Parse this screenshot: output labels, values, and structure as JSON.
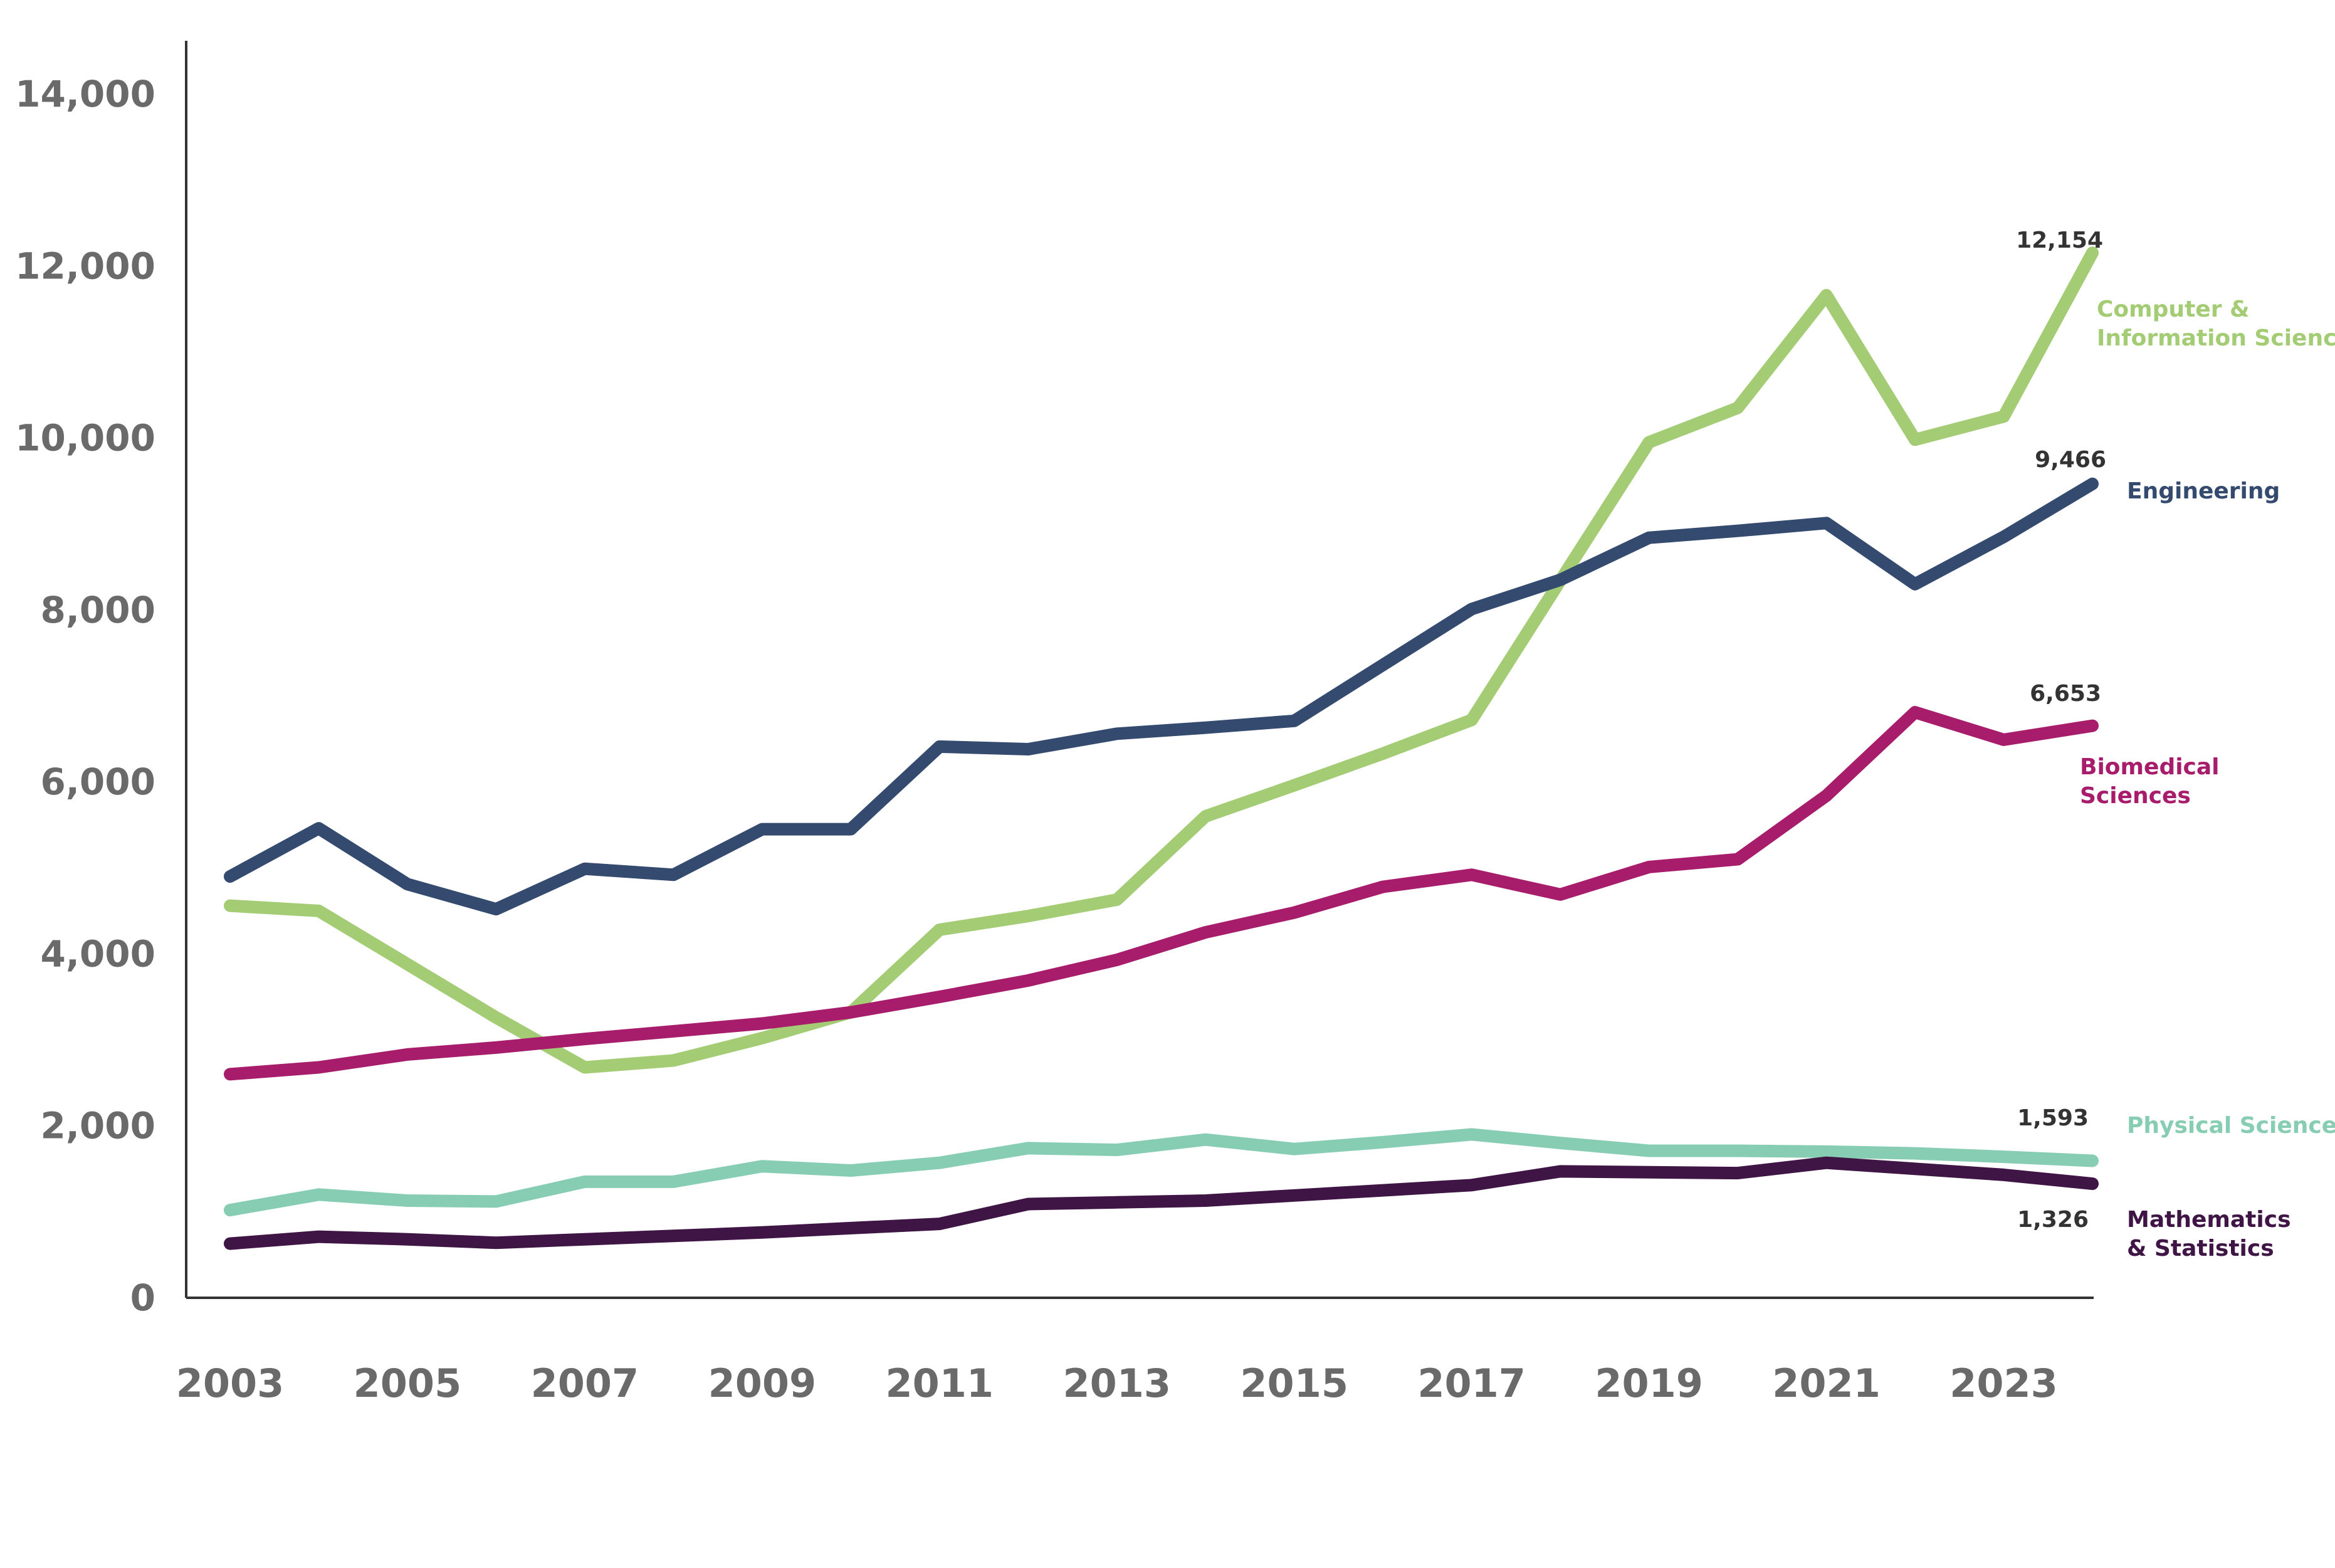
{
  "chart_data": {
    "type": "line",
    "title": "",
    "xlabel": "",
    "ylabel": "",
    "ylim": [
      0,
      14000
    ],
    "yticks": [
      0,
      2000,
      4000,
      6000,
      8000,
      10000,
      12000,
      14000
    ],
    "ytick_labels": [
      "0",
      "2,000",
      "4,000",
      "6,000",
      "8,000",
      "10,000",
      "12,000",
      "14,000"
    ],
    "xlim": [
      2003,
      2024
    ],
    "xticks": [
      2003,
      2005,
      2007,
      2009,
      2011,
      2013,
      2015,
      2017,
      2019,
      2021,
      2023
    ],
    "xtick_labels": [
      "2003",
      "2005",
      "2007",
      "2009",
      "2011",
      "2013",
      "2015",
      "2017",
      "2019",
      "2021",
      "2023"
    ],
    "x": [
      2003,
      2004,
      2005,
      2006,
      2007,
      2008,
      2009,
      2010,
      2011,
      2012,
      2013,
      2014,
      2015,
      2016,
      2017,
      2018,
      2019,
      2020,
      2021,
      2022,
      2023,
      2024
    ],
    "grid": false,
    "legend": "direct labels at line ends (right)",
    "series": [
      {
        "key": "cis",
        "name": "Computer & Information Sciences",
        "label_lines": [
          "Computer &",
          "Information Sciences"
        ],
        "color": "#a3cc74",
        "end_value_label": "12,154",
        "values": [
          4560,
          4500,
          3880,
          3260,
          2680,
          2760,
          3020,
          3320,
          4280,
          4440,
          4630,
          5600,
          5960,
          6330,
          6720,
          8340,
          9950,
          10350,
          11660,
          9980,
          10250,
          12154
        ]
      },
      {
        "key": "eng",
        "name": "Engineering",
        "label_lines": [
          "Engineering"
        ],
        "color": "#344a6e",
        "end_value_label": "9,466",
        "values": [
          4900,
          5460,
          4810,
          4520,
          4990,
          4920,
          5450,
          5450,
          6410,
          6380,
          6560,
          6630,
          6710,
          7360,
          8010,
          8350,
          8840,
          8920,
          9010,
          8300,
          8850,
          9466
        ]
      },
      {
        "key": "bio",
        "name": "Biomedical Sciences",
        "label_lines": [
          "Biomedical",
          "Sciences"
        ],
        "color": "#a71d6b",
        "end_value_label": "6,653",
        "values": [
          2600,
          2680,
          2830,
          2910,
          3010,
          3100,
          3190,
          3320,
          3500,
          3690,
          3930,
          4250,
          4480,
          4780,
          4920,
          4690,
          5010,
          5100,
          5840,
          6810,
          6490,
          6653
        ]
      },
      {
        "key": "phys",
        "name": "Physical Sciences",
        "label_lines": [
          "Physical Sciences"
        ],
        "color": "#86cdb4",
        "end_value_label": "1,593",
        "values": [
          1020,
          1200,
          1130,
          1120,
          1350,
          1350,
          1530,
          1480,
          1570,
          1740,
          1720,
          1840,
          1730,
          1810,
          1900,
          1800,
          1710,
          1710,
          1700,
          1680,
          1640,
          1593
        ]
      },
      {
        "key": "math",
        "name": "Mathematics & Statistics",
        "label_lines": [
          "Mathematics",
          "& Statistics"
        ],
        "color": "#3e1544",
        "end_value_label": "1,326",
        "values": [
          630,
          710,
          680,
          640,
          680,
          720,
          760,
          810,
          860,
          1090,
          1110,
          1130,
          1190,
          1250,
          1310,
          1470,
          1460,
          1450,
          1570,
          1500,
          1430,
          1326
        ]
      }
    ]
  }
}
